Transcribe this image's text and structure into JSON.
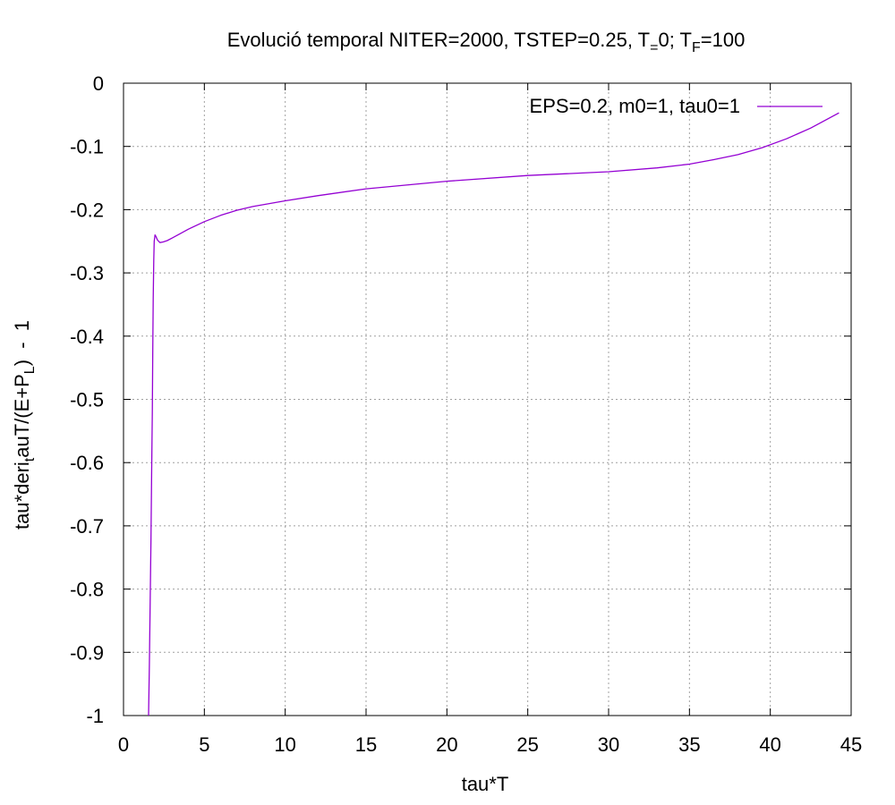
{
  "chart_data": {
    "type": "line",
    "title": {
      "prefix": "Evolució temporal NITER=2000, TSTEP=0.25, T",
      "sub1": "=",
      "mid": "0; T",
      "sub2": "F",
      "suffix": "=100"
    },
    "xlabel": "tau*T",
    "ylabel": {
      "part1": "tau*deri",
      "sub1": "t",
      "part2": "auT/(E+P",
      "sub2": "L",
      "part3": ")  -  1"
    },
    "xlim": [
      0,
      45
    ],
    "ylim": [
      -1,
      0
    ],
    "x_ticks": [
      0,
      5,
      10,
      15,
      20,
      25,
      30,
      35,
      40,
      45
    ],
    "y_ticks": [
      0,
      -0.1,
      -0.2,
      -0.3,
      -0.4,
      -0.5,
      -0.6,
      -0.7,
      -0.8,
      -0.9,
      -1
    ],
    "grid": true,
    "legend_position": "top-right",
    "series": [
      {
        "name": "EPS=0.2, m0=1, tau0=1",
        "color": "#9400d3",
        "x": [
          1.55,
          1.6,
          1.65,
          1.7,
          1.74,
          1.78,
          1.81,
          1.84,
          1.87,
          1.9,
          1.95,
          2.0,
          2.1,
          2.25,
          2.45,
          2.7,
          3.0,
          3.5,
          4.0,
          5.0,
          6.0,
          7.0,
          8.0,
          10.0,
          12.0,
          15.0,
          20.0,
          25.0,
          30.0,
          33.0,
          35.0,
          36.5,
          38.0,
          39.5,
          41.0,
          42.5,
          44.25
        ],
        "y": [
          -1.0,
          -0.92,
          -0.82,
          -0.72,
          -0.62,
          -0.52,
          -0.42,
          -0.34,
          -0.28,
          -0.25,
          -0.24,
          -0.242,
          -0.248,
          -0.252,
          -0.251,
          -0.249,
          -0.245,
          -0.238,
          -0.231,
          -0.219,
          -0.209,
          -0.201,
          -0.195,
          -0.186,
          -0.178,
          -0.167,
          -0.155,
          -0.146,
          -0.14,
          -0.134,
          -0.128,
          -0.121,
          -0.113,
          -0.102,
          -0.088,
          -0.071,
          -0.047
        ]
      }
    ]
  }
}
